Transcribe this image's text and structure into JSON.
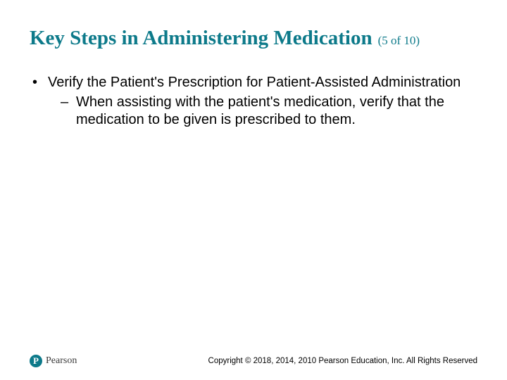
{
  "colors": {
    "title": "#0d7a8a",
    "pager": "#0d7a8a",
    "body_text": "#000000",
    "background": "#ffffff",
    "logo_bg": "#0d7a8a",
    "logo_text": "#3a3a3a",
    "copyright": "#000000"
  },
  "title": "Key Steps in Administering Medication",
  "pager": "(5 of 10)",
  "bullets": {
    "level1_marker": "•",
    "level2_marker": "–",
    "item1": "Verify the Patient's Prescription for Patient-Assisted Administration",
    "item1_sub1": "When assisting with the patient's medication, verify that the medication to be given is prescribed to them."
  },
  "footer": {
    "logo_letter": "P",
    "logo_name": "Pearson",
    "copyright": "Copyright © 2018, 2014, 2010 Pearson Education, Inc. All Rights Reserved"
  }
}
